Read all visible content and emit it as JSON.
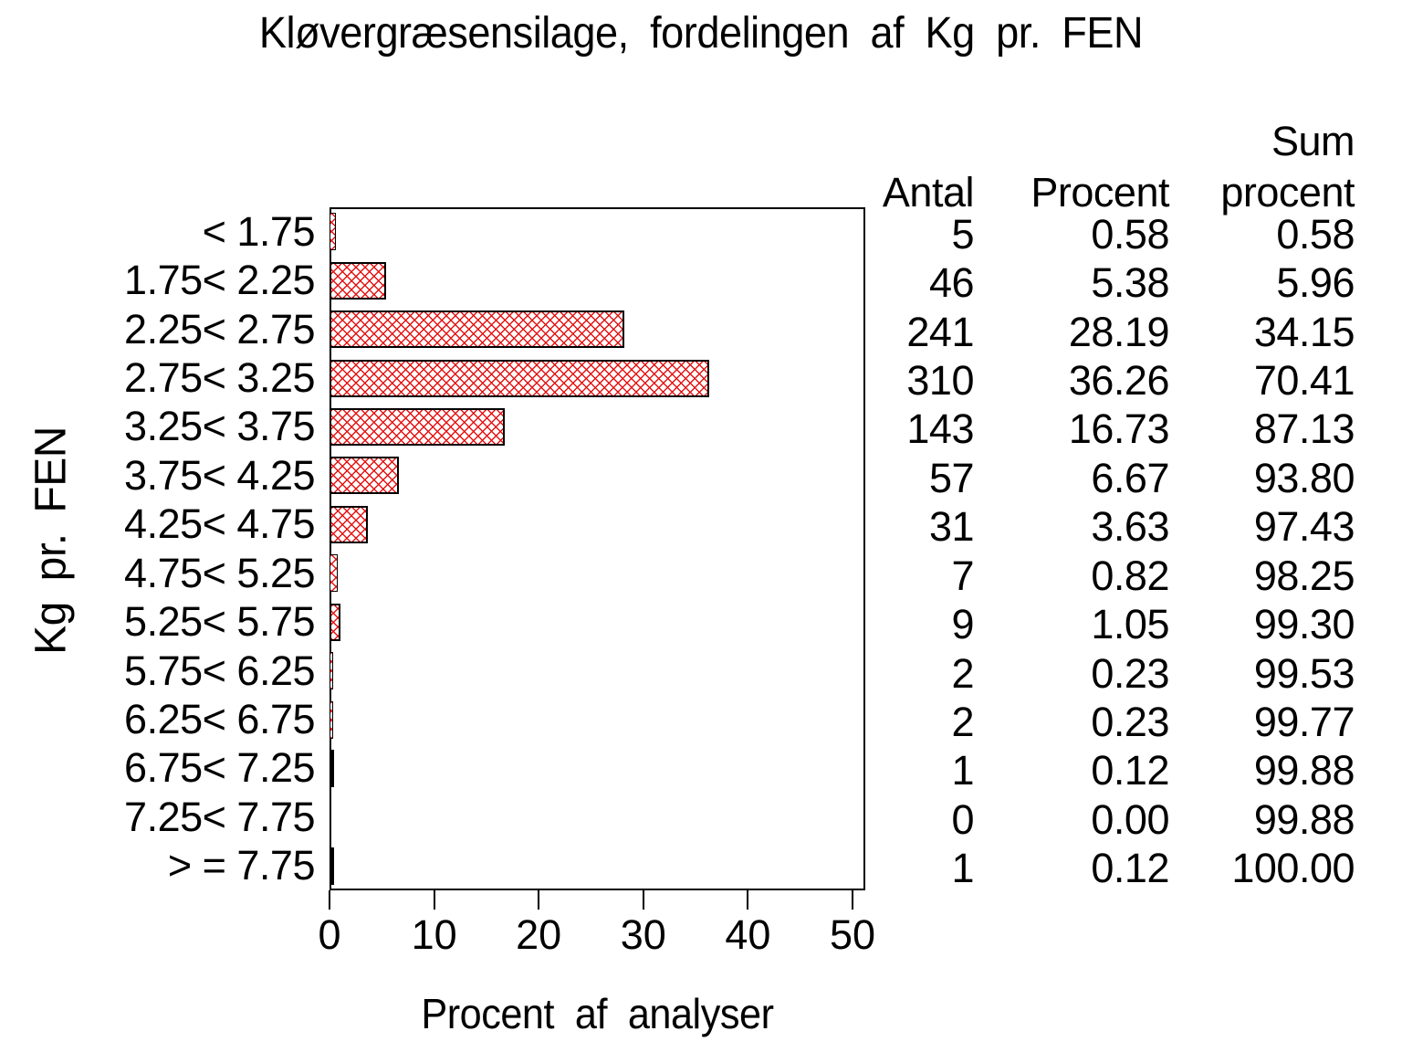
{
  "chart_data": {
    "type": "bar",
    "orientation": "horizontal",
    "title": "Kløvergræsensilage, fordelingen af Kg pr. FEN",
    "xlabel": "Procent af analyser",
    "ylabel": "Kg pr. FEN",
    "xlim": [
      0,
      50
    ],
    "xticks": [
      0,
      10,
      20,
      30,
      40,
      50
    ],
    "grid": false,
    "legend": "none",
    "bar_fill_style": "red diagonal crosshatch, black outline",
    "table_headers": {
      "antal": "Antal",
      "procent": "Procent",
      "sum_line1": "Sum",
      "sum_line2": "procent"
    },
    "rows": [
      {
        "label": "< 1.75",
        "antal": "5",
        "procent": "0.58",
        "sum": "0.58",
        "value": 0.58
      },
      {
        "label": "1.75< 2.25",
        "antal": "46",
        "procent": "5.38",
        "sum": "5.96",
        "value": 5.38
      },
      {
        "label": "2.25< 2.75",
        "antal": "241",
        "procent": "28.19",
        "sum": "34.15",
        "value": 28.19
      },
      {
        "label": "2.75< 3.25",
        "antal": "310",
        "procent": "36.26",
        "sum": "70.41",
        "value": 36.26
      },
      {
        "label": "3.25< 3.75",
        "antal": "143",
        "procent": "16.73",
        "sum": "87.13",
        "value": 16.73
      },
      {
        "label": "3.75< 4.25",
        "antal": "57",
        "procent": "6.67",
        "sum": "93.80",
        "value": 6.67
      },
      {
        "label": "4.25< 4.75",
        "antal": "31",
        "procent": "3.63",
        "sum": "97.43",
        "value": 3.63
      },
      {
        "label": "4.75< 5.25",
        "antal": "7",
        "procent": "0.82",
        "sum": "98.25",
        "value": 0.82
      },
      {
        "label": "5.25< 5.75",
        "antal": "9",
        "procent": "1.05",
        "sum": "99.30",
        "value": 1.05
      },
      {
        "label": "5.75< 6.25",
        "antal": "2",
        "procent": "0.23",
        "sum": "99.53",
        "value": 0.23
      },
      {
        "label": "6.25< 6.75",
        "antal": "2",
        "procent": "0.23",
        "sum": "99.77",
        "value": 0.23
      },
      {
        "label": "6.75< 7.25",
        "antal": "1",
        "procent": "0.12",
        "sum": "99.88",
        "value": 0.12
      },
      {
        "label": "7.25< 7.75",
        "antal": "0",
        "procent": "0.00",
        "sum": "99.88",
        "value": 0.0
      },
      {
        "label": "> = 7.75",
        "antal": "1",
        "procent": "0.12",
        "sum": "100.00",
        "value": 0.12
      }
    ]
  },
  "colors": {
    "hatch_red": "#e41414",
    "axis_black": "#000000",
    "text_black": "#000000",
    "background": "#ffffff"
  }
}
